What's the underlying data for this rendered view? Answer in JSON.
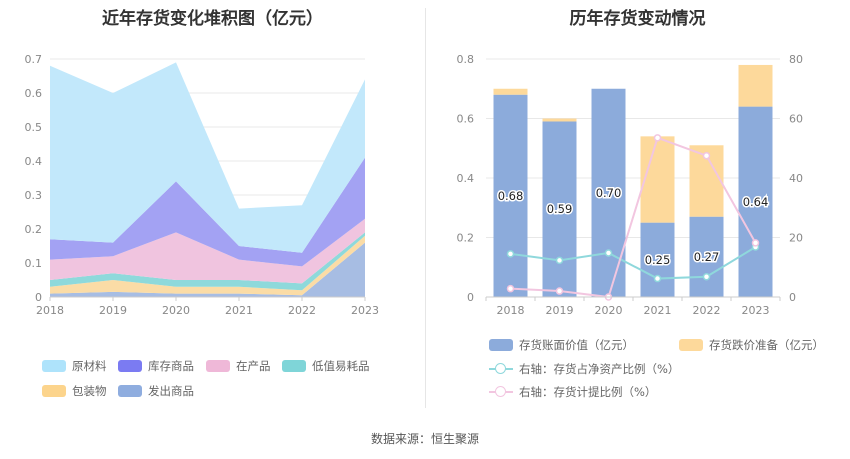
{
  "chart_data": [
    {
      "type": "area",
      "stacked": true,
      "title": "近年存货变化堆积图（亿元）",
      "categories": [
        "2018",
        "2019",
        "2020",
        "2021",
        "2022",
        "2023"
      ],
      "y_ticks": [
        "0",
        "0.1",
        "0.2",
        "0.3",
        "0.4",
        "0.5",
        "0.6",
        "0.7"
      ],
      "ylim": [
        0,
        0.7
      ],
      "series": [
        {
          "name": "发出商品",
          "color": "#a7bde3",
          "values": [
            0.01,
            0.015,
            0.01,
            0.01,
            0.005,
            0.16
          ]
        },
        {
          "name": "包装物",
          "color": "#fbdca6",
          "values": [
            0.02,
            0.035,
            0.02,
            0.02,
            0.015,
            0.02
          ]
        },
        {
          "name": "低值易耗品",
          "color": "#8ed9db",
          "values": [
            0.02,
            0.02,
            0.02,
            0.02,
            0.02,
            0.01
          ]
        },
        {
          "name": "在产品",
          "color": "#f0c4df",
          "values": [
            0.06,
            0.05,
            0.14,
            0.06,
            0.05,
            0.04
          ]
        },
        {
          "name": "库存商品",
          "color": "#a3a2f3",
          "values": [
            0.06,
            0.04,
            0.15,
            0.04,
            0.04,
            0.18
          ]
        },
        {
          "name": "原材料",
          "color": "#c2e8fb",
          "values": [
            0.51,
            0.44,
            0.35,
            0.11,
            0.14,
            0.23
          ]
        }
      ],
      "legend": [
        {
          "label": "原材料",
          "color": "#aee3fb"
        },
        {
          "label": "库存商品",
          "color": "#7b7bf2"
        },
        {
          "label": "在产品",
          "color": "#efb8d8"
        },
        {
          "label": "低值易耗品",
          "color": "#7fd5d8"
        },
        {
          "label": "包装物",
          "color": "#fcd48c"
        },
        {
          "label": "发出商品",
          "color": "#8faddf"
        }
      ]
    },
    {
      "type": "bar",
      "stacked": true,
      "title": "历年存货变动情况",
      "categories": [
        "2018",
        "2019",
        "2020",
        "2021",
        "2022",
        "2023"
      ],
      "y_ticks_left": [
        "0",
        "0.2",
        "0.4",
        "0.6",
        "0.8"
      ],
      "y_ticks_right": [
        "0",
        "20",
        "40",
        "60",
        "80"
      ],
      "ylim_left": [
        0,
        0.8
      ],
      "ylim_right": [
        0,
        80
      ],
      "bar_series": [
        {
          "name": "存货账面价值（亿元）",
          "color": "#8cabdb",
          "values": [
            0.68,
            0.59,
            0.7,
            0.25,
            0.27,
            0.64
          ],
          "labels": [
            "0.68",
            "0.59",
            "0.70",
            "0.25",
            "0.27",
            "0.64"
          ]
        },
        {
          "name": "存货跌价准备（亿元）",
          "color": "#fdd99b",
          "values": [
            0.02,
            0.01,
            0.0,
            0.29,
            0.24,
            0.14
          ]
        }
      ],
      "line_series": [
        {
          "name": "右轴：存货占净资产比例（%）",
          "color": "#8fd8dc",
          "values": [
            14.5,
            12.3,
            14.8,
            6.2,
            6.8,
            16.8
          ]
        },
        {
          "name": "右轴：存货计提比例（%）",
          "color": "#f2c6e0",
          "values": [
            2.8,
            2.0,
            0.0,
            53.5,
            47.5,
            18.2
          ]
        }
      ]
    }
  ],
  "source": "数据来源：恒生聚源"
}
